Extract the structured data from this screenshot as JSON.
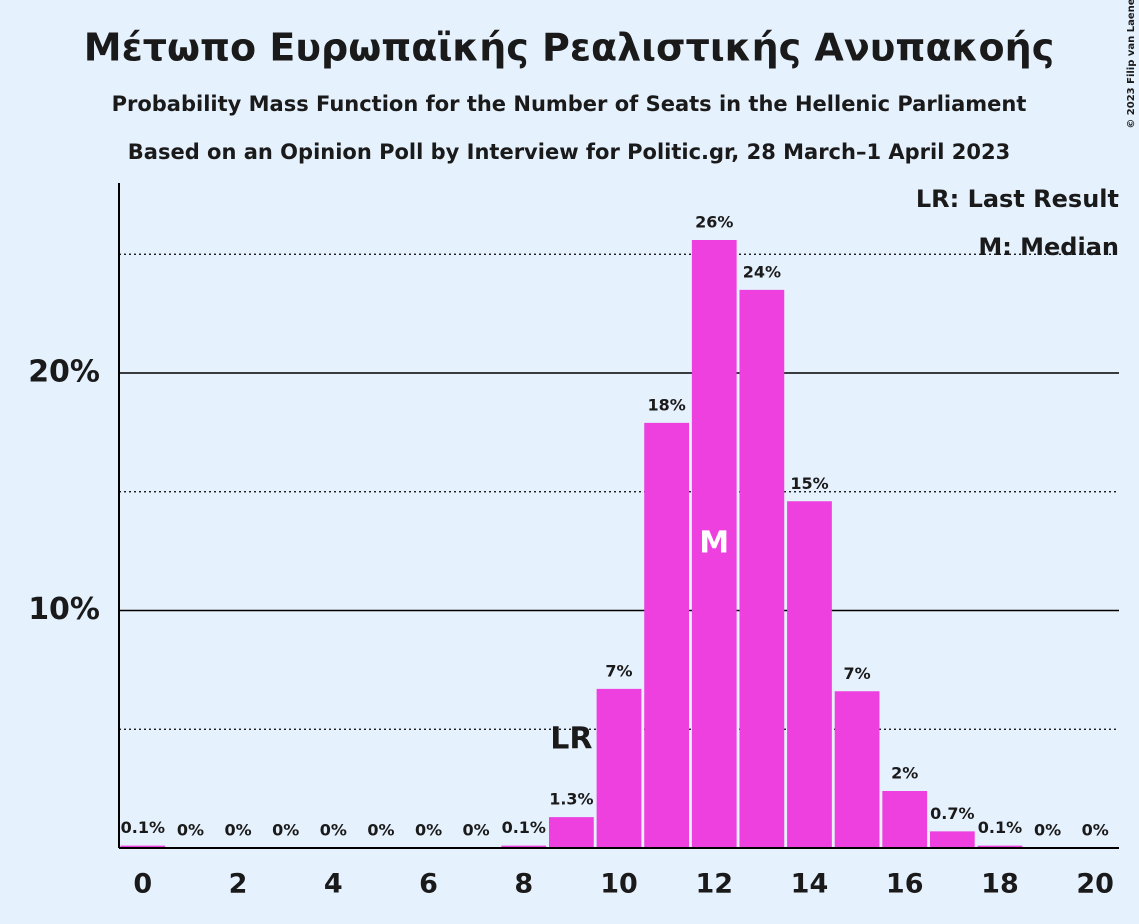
{
  "chart_data": {
    "type": "bar",
    "title": "Μέτωπο Ευρωπαϊκής Ρεαλιστικής Ανυπακοής",
    "subtitle": "Probability Mass Function for the Number of Seats in the Hellenic Parliament",
    "subtitle2": "Based on an Opinion Poll by Interview for Politic.gr, 28 March–1 April 2023",
    "copyright": "© 2023 Filip van Laenen",
    "x": [
      0,
      1,
      2,
      3,
      4,
      5,
      6,
      7,
      8,
      9,
      10,
      11,
      12,
      13,
      14,
      15,
      16,
      17,
      18,
      19,
      20
    ],
    "values": [
      0.1,
      0,
      0,
      0,
      0,
      0,
      0,
      0,
      0.1,
      1.3,
      6.7,
      17.9,
      25.6,
      23.5,
      14.6,
      6.6,
      2.4,
      0.7,
      0.1,
      0,
      0
    ],
    "value_labels": [
      "0.1%",
      "0%",
      "0%",
      "0%",
      "0%",
      "0%",
      "0%",
      "0%",
      "0.1%",
      "1.3%",
      "7%",
      "18%",
      "26%",
      "24%",
      "15%",
      "7%",
      "2%",
      "0.7%",
      "0.1%",
      "0%",
      "0%"
    ],
    "color": "#ee3fdf",
    "xlim": [
      -0.5,
      20.5
    ],
    "xticks": [
      0,
      2,
      4,
      6,
      8,
      10,
      12,
      14,
      16,
      18,
      20
    ],
    "ylim": [
      0,
      28
    ],
    "yticks": [
      {
        "value": 10,
        "label": "10%"
      },
      {
        "value": 20,
        "label": "20%"
      }
    ],
    "minor_yticks": [
      5,
      15,
      25
    ],
    "grid": true,
    "annotations": [
      {
        "label": "LR",
        "x": 9
      },
      {
        "label": "M",
        "x": 12
      }
    ],
    "legend": [
      "LR: Last Result",
      "M: Median"
    ]
  }
}
